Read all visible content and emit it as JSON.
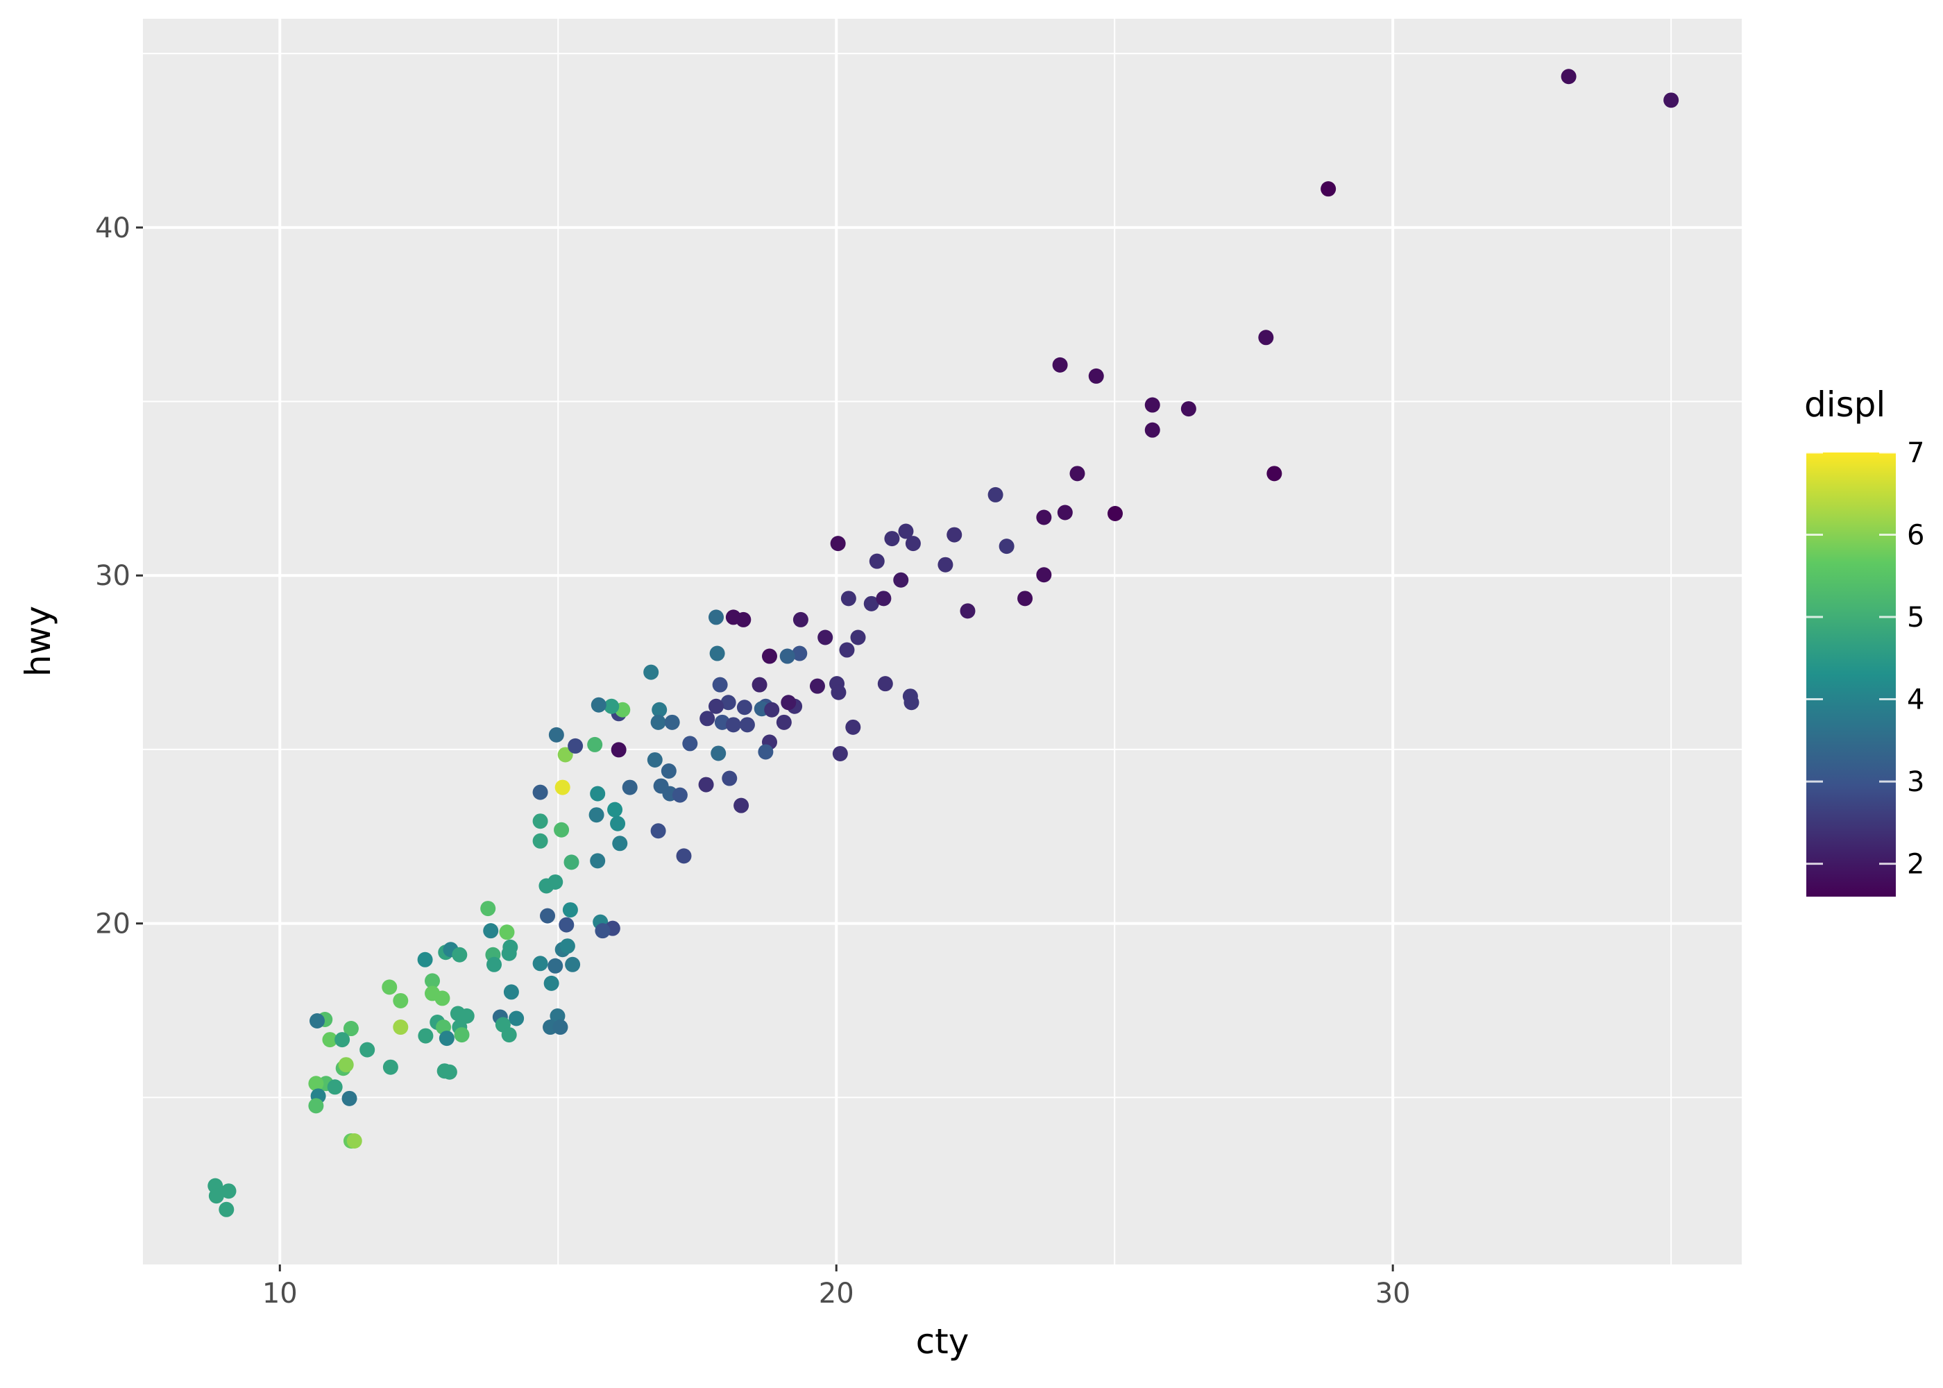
{
  "chart_data": {
    "type": "scatter",
    "x_label": "cty",
    "y_label": "hwy",
    "xlim": [
      7.54,
      36.27
    ],
    "ylim": [
      10.2,
      46.0
    ],
    "xticks": [
      10,
      20,
      30
    ],
    "yticks": [
      20,
      30,
      40
    ],
    "xminor": [
      15,
      25,
      35
    ],
    "yminor": [
      15,
      25,
      35,
      45
    ],
    "grid": true,
    "x": [
      33.16,
      35.0,
      28.84,
      27.72,
      24.02,
      24.67,
      25.68,
      26.33,
      25.68,
      24.33,
      27.87,
      22.86,
      23.73,
      24.11,
      25.01,
      23.06,
      22.12,
      21.25,
      21.0,
      21.38,
      20.03,
      20.73,
      21.96,
      23.73,
      21.16,
      20.22,
      23.39,
      20.63,
      20.85,
      22.36,
      19.36,
      18.15,
      18.33,
      17.84,
      19.8,
      20.39,
      20.19,
      19.34,
      19.12,
      18.8,
      17.86,
      16.67,
      18.73,
      18.35,
      17.91,
      18.62,
      18.06,
      17.84,
      17.68,
      17.95,
      18.15,
      18.4,
      18.66,
      18.84,
      19.06,
      19.25,
      19.14,
      18.8,
      18.73,
      17.88,
      18.08,
      17.66,
      18.29,
      17.37,
      20.01,
      20.04,
      20.88,
      21.33,
      21.35,
      20.3,
      20.07,
      19.66,
      16.82,
      16.8,
      17.05,
      16.74,
      16.99,
      16.85,
      17.01,
      17.19,
      16.8,
      17.26,
      16.29,
      16.09,
      16.09,
      16.16,
      15.96,
      15.73,
      15.66,
      15.71,
      16.02,
      16.07,
      15.69,
      16.11,
      15.71,
      15.24,
      15.06,
      14.68,
      14.68,
      14.68,
      15.08,
      15.13,
      14.97,
      15.31,
      14.95,
      14.79,
      15.22,
      14.81,
      15.15,
      15.76,
      15.98,
      15.8,
      15.08,
      15.17,
      14.95,
      15.26,
      14.68,
      14.88,
      14.99,
      14.86,
      15.04,
      13.74,
      13.79,
      14.08,
      14.14,
      13.83,
      14.12,
      13.85,
      14.16,
      13.96,
      14.25,
      14.01,
      14.12,
      12.98,
      13.07,
      13.23,
      12.61,
      12.74,
      12.92,
      12.74,
      11.97,
      12.17,
      12.17,
      13.2,
      13.36,
      12.83,
      12.94,
      13.23,
      13.27,
      13.0,
      12.62,
      11.99,
      12.96,
      13.05,
      11.57,
      11.28,
      10.9,
      11.12,
      10.81,
      10.67,
      11.14,
      11.19,
      10.83,
      10.65,
      10.99,
      11.25,
      10.69,
      10.65,
      11.28,
      11.34,
      8.84,
      8.86,
      9.08,
      9.04
    ],
    "y": [
      44.34,
      43.66,
      41.11,
      36.84,
      36.05,
      35.73,
      34.9,
      34.79,
      34.18,
      32.93,
      32.93,
      32.32,
      31.67,
      31.81,
      31.78,
      30.84,
      31.17,
      31.27,
      31.06,
      30.92,
      30.92,
      30.41,
      30.31,
      30.02,
      29.87,
      29.34,
      29.34,
      29.19,
      29.34,
      28.98,
      28.73,
      28.8,
      28.73,
      28.8,
      28.22,
      28.22,
      27.86,
      27.76,
      27.68,
      27.68,
      27.76,
      27.22,
      26.24,
      26.21,
      26.86,
      26.86,
      26.35,
      26.24,
      25.89,
      25.78,
      25.71,
      25.71,
      26.17,
      26.14,
      25.78,
      26.24,
      26.35,
      25.21,
      24.93,
      24.89,
      24.17,
      23.99,
      23.39,
      25.17,
      26.89,
      26.64,
      26.89,
      26.53,
      26.35,
      25.64,
      24.88,
      26.82,
      26.14,
      25.78,
      25.78,
      24.7,
      24.38,
      23.95,
      23.73,
      23.69,
      22.66,
      21.94,
      23.91,
      24.99,
      26.03,
      26.14,
      26.24,
      26.28,
      25.14,
      23.73,
      23.27,
      22.87,
      23.12,
      22.3,
      21.8,
      21.76,
      22.69,
      22.37,
      22.94,
      23.77,
      23.91,
      24.85,
      25.42,
      25.1,
      21.19,
      21.08,
      20.39,
      20.22,
      19.96,
      20.04,
      19.86,
      19.79,
      19.25,
      19.35,
      18.78,
      18.82,
      18.85,
      18.28,
      17.34,
      17.02,
      17.02,
      20.43,
      19.79,
      19.75,
      19.32,
      19.1,
      19.14,
      18.82,
      18.03,
      17.31,
      17.27,
      17.09,
      16.8,
      19.17,
      19.25,
      19.1,
      18.96,
      18.35,
      17.85,
      17.99,
      18.17,
      17.78,
      17.02,
      17.41,
      17.34,
      17.16,
      17.02,
      17.02,
      16.8,
      16.7,
      16.77,
      15.87,
      15.76,
      15.73,
      16.37,
      16.98,
      16.66,
      16.66,
      17.24,
      17.2,
      15.84,
      15.94,
      15.4,
      15.4,
      15.3,
      14.97,
      15.04,
      14.76,
      13.75,
      13.75,
      12.46,
      12.17,
      12.31,
      11.78
    ],
    "color": {
      "title": "displ",
      "palette": "viridis",
      "lim": [
        1.6,
        7.0
      ],
      "ticks": [
        2,
        3,
        4,
        5,
        6,
        7
      ],
      "values": [
        1.8,
        1.9,
        1.6,
        1.8,
        1.8,
        1.8,
        1.8,
        1.8,
        1.8,
        1.8,
        1.6,
        2.5,
        1.8,
        1.8,
        1.6,
        2.5,
        2.4,
        2.4,
        2.4,
        2.4,
        1.8,
        2.4,
        2.4,
        1.8,
        2.0,
        2.4,
        1.8,
        2.4,
        2.0,
        2.0,
        2.0,
        1.8,
        1.8,
        3.5,
        2.0,
        2.4,
        2.4,
        3.0,
        3.3,
        1.8,
        3.6,
        3.8,
        3.0,
        2.7,
        2.9,
        2.2,
        2.7,
        2.5,
        2.5,
        3.0,
        2.7,
        2.7,
        3.3,
        2.4,
        2.4,
        2.4,
        2.0,
        2.4,
        3.1,
        3.5,
        2.8,
        2.4,
        2.4,
        3.0,
        2.4,
        2.4,
        2.4,
        2.5,
        2.5,
        2.4,
        2.4,
        2.0,
        3.8,
        3.5,
        3.3,
        3.5,
        3.3,
        3.3,
        3.3,
        3.0,
        2.9,
        2.8,
        3.3,
        1.8,
        2.7,
        5.7,
        4.6,
        3.6,
        5.2,
        4.2,
        4.3,
        4.2,
        3.8,
        3.9,
        3.8,
        5.0,
        5.3,
        4.7,
        4.7,
        3.2,
        6.8,
        6.0,
        3.5,
        2.8,
        4.6,
        4.6,
        4.2,
        3.2,
        3.0,
        4.0,
        2.8,
        3.0,
        3.8,
        4.0,
        3.5,
        3.8,
        4.0,
        4.0,
        3.7,
        3.6,
        3.5,
        5.4,
        4.0,
        5.7,
        4.6,
        5.0,
        4.6,
        4.6,
        4.0,
        3.5,
        4.0,
        4.7,
        4.7,
        4.7,
        4.0,
        4.7,
        4.2,
        5.4,
        5.7,
        5.7,
        5.7,
        5.7,
        6.2,
        4.7,
        4.7,
        4.7,
        5.4,
        4.7,
        5.4,
        4.0,
        4.7,
        4.7,
        4.7,
        4.7,
        4.7,
        5.4,
        5.7,
        4.7,
        5.4,
        3.7,
        5.4,
        6.0,
        5.4,
        5.7,
        4.7,
        3.7,
        4.0,
        5.4,
        5.7,
        6.1,
        4.7,
        4.7,
        4.7,
        4.7
      ]
    }
  }
}
